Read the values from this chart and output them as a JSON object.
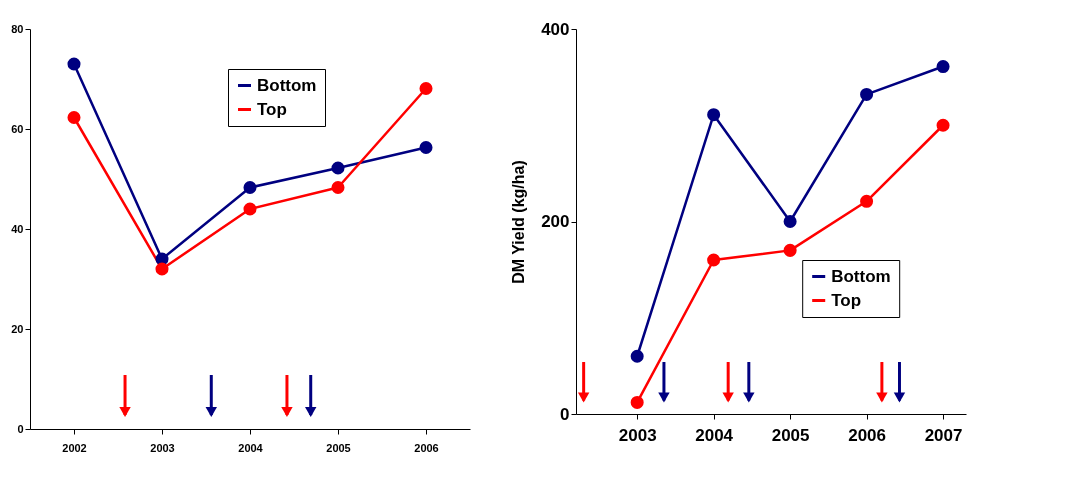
{
  "chart_data": [
    {
      "type": "line",
      "x": [
        2002,
        2003,
        2004,
        2005,
        2006
      ],
      "xlim": [
        2001.5,
        2006.5
      ],
      "xticks": [
        2002,
        2003,
        2004,
        2005,
        2006
      ],
      "ylim": [
        0,
        80
      ],
      "yticks": [
        0,
        20,
        40,
        60,
        80
      ],
      "legend": "top right",
      "marker": "circle",
      "grid": false,
      "series": [
        {
          "name": "Bottom",
          "color": "#000080",
          "values": [
            73,
            34,
            48.3,
            52.2,
            56.3
          ]
        },
        {
          "name": "Top",
          "color": "#ff0000",
          "values": [
            62.3,
            32,
            44,
            48.3,
            68.1
          ]
        }
      ],
      "ref_lines": [
        {
          "axis": "x",
          "value": 2002.58,
          "color": "#ff0000"
        },
        {
          "axis": "x",
          "value": 2003.56,
          "color": "#000080"
        },
        {
          "axis": "x",
          "value": 2004.42,
          "color": "#ff0000"
        },
        {
          "axis": "x",
          "value": 2004.69,
          "color": "#000080"
        }
      ]
    },
    {
      "type": "line",
      "x": [
        2003,
        2004,
        2005,
        2006,
        2007
      ],
      "xlim": [
        2002.2,
        2007.3
      ],
      "xticks": [
        2003,
        2004,
        2005,
        2006,
        2007
      ],
      "ylim": [
        0,
        400
      ],
      "yticks": [
        0,
        200,
        400
      ],
      "ylabel": "DM Yield (kg/ha)",
      "legend": "bottom right",
      "marker": "circle",
      "grid": false,
      "series": [
        {
          "name": "Bottom",
          "color": "#000080",
          "values": [
            60,
            311,
            200,
            332,
            361
          ]
        },
        {
          "name": "Top",
          "color": "#ff0000",
          "values": [
            12,
            160,
            170,
            221,
            300
          ]
        }
      ],
      "ref_lines": [
        {
          "axis": "x",
          "value": 2002.3,
          "color": "#ff0000"
        },
        {
          "axis": "x",
          "value": 2003.35,
          "color": "#000080"
        },
        {
          "axis": "x",
          "value": 2004.19,
          "color": "#ff0000"
        },
        {
          "axis": "x",
          "value": 2004.46,
          "color": "#000080"
        },
        {
          "axis": "x",
          "value": 2006.2,
          "color": "#ff0000"
        },
        {
          "axis": "x",
          "value": 2006.43,
          "color": "#000080"
        }
      ]
    }
  ]
}
